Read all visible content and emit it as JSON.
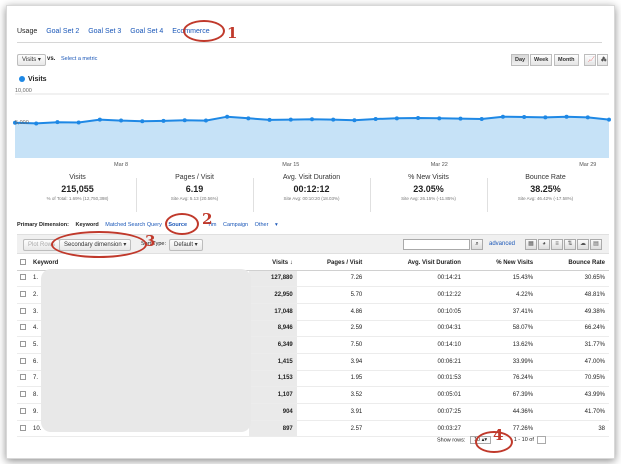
{
  "tabs": {
    "partial": "Usage",
    "items": [
      "Goal Set 2",
      "Goal Set 3",
      "Goal Set 4",
      "Ecommerce"
    ]
  },
  "toolbar": {
    "metric_select": "Visits",
    "vs_label": "vs.",
    "select_metric": "Select a metric",
    "day": "Day",
    "week": "Week",
    "month": "Month"
  },
  "chart_data": {
    "type": "area",
    "series": [
      {
        "name": "Visits",
        "values": [
          5500,
          5400,
          5600,
          5550,
          6000,
          5850,
          5750,
          5800,
          5900,
          5850,
          6450,
          6200,
          5950,
          6000,
          6050,
          6000,
          5900,
          6100,
          6200,
          6250,
          6200,
          6150,
          6100,
          6450,
          6400,
          6350,
          6450,
          6350,
          6000
        ]
      }
    ],
    "yticks": [
      "10,000",
      "5,000"
    ],
    "xticks": [
      "Mar 8",
      "Mar 15",
      "Mar 22",
      "Mar 29"
    ],
    "ylim": [
      0,
      10000
    ],
    "color": "#1e88e5"
  },
  "summary": [
    {
      "label": "Visits",
      "value": "215,055",
      "sub": "% of Total: 1.69% (12,750,398)"
    },
    {
      "label": "Pages / Visit",
      "value": "6.19",
      "sub": "Site Avg: 5.13 (20.56%)"
    },
    {
      "label": "Avg. Visit Duration",
      "value": "00:12:12",
      "sub": "Site Avg: 00:10:20 (18.03%)"
    },
    {
      "label": "% New Visits",
      "value": "23.05%",
      "sub": "Site Avg: 26.15% (-11.85%)"
    },
    {
      "label": "Bounce Rate",
      "value": "38.25%",
      "sub": "Site Avg: 46.42% (-17.58%)"
    }
  ],
  "dimensions": {
    "label": "Primary Dimension:",
    "keyword": "Keyword",
    "matched": "Matched Search Query",
    "source": "Source",
    "other_partial": "Tim",
    "campaign": "Campaign",
    "other": "Other"
  },
  "plotbar": {
    "plot_rows": "Plot Rows",
    "secondary": "Secondary dimension",
    "sort_label": "Sort Type:",
    "sort_value": "Default",
    "advanced": "advanced"
  },
  "table": {
    "headers": [
      "Keyword",
      "Visits",
      "Pages / Visit",
      "Avg. Visit Duration",
      "% New Visits",
      "Bounce Rate"
    ],
    "rows": [
      {
        "n": "1.",
        "visits": "127,880",
        "pages": "7.26",
        "duration": "00:14:21",
        "new": "15.43%",
        "bounce": "30.65%"
      },
      {
        "n": "2.",
        "visits": "22,950",
        "pages": "5.70",
        "duration": "00:12:22",
        "new": "4.22%",
        "bounce": "48.81%"
      },
      {
        "n": "3.",
        "visits": "17,048",
        "pages": "4.86",
        "duration": "00:10:05",
        "new": "37.41%",
        "bounce": "49.38%"
      },
      {
        "n": "4.",
        "visits": "8,946",
        "pages": "2.59",
        "duration": "00:04:31",
        "new": "58.07%",
        "bounce": "66.24%"
      },
      {
        "n": "5.",
        "visits": "6,349",
        "pages": "7.50",
        "duration": "00:14:10",
        "new": "13.62%",
        "bounce": "31.77%"
      },
      {
        "n": "6.",
        "visits": "1,415",
        "pages": "3.94",
        "duration": "00:06:21",
        "new": "33.99%",
        "bounce": "47.00%"
      },
      {
        "n": "7.",
        "visits": "1,153",
        "pages": "1.95",
        "duration": "00:01:53",
        "new": "76.24%",
        "bounce": "70.95%"
      },
      {
        "n": "8.",
        "visits": "1,107",
        "pages": "3.52",
        "duration": "00:05:01",
        "new": "67.39%",
        "bounce": "43.99%"
      },
      {
        "n": "9.",
        "visits": "904",
        "pages": "3.91",
        "duration": "00:07:25",
        "new": "44.36%",
        "bounce": "41.70%"
      },
      {
        "n": "10.",
        "visits": "897",
        "pages": "2.57",
        "duration": "00:03:27",
        "new": "77.26%",
        "bounce": "38"
      }
    ]
  },
  "footer": {
    "show_rows": "Show rows:",
    "rows_value": "10",
    "range": "1 - 10 of"
  },
  "annotations": {
    "one": "1",
    "two": "2",
    "three": "3",
    "four": "4",
    "color": "#c0392b"
  }
}
